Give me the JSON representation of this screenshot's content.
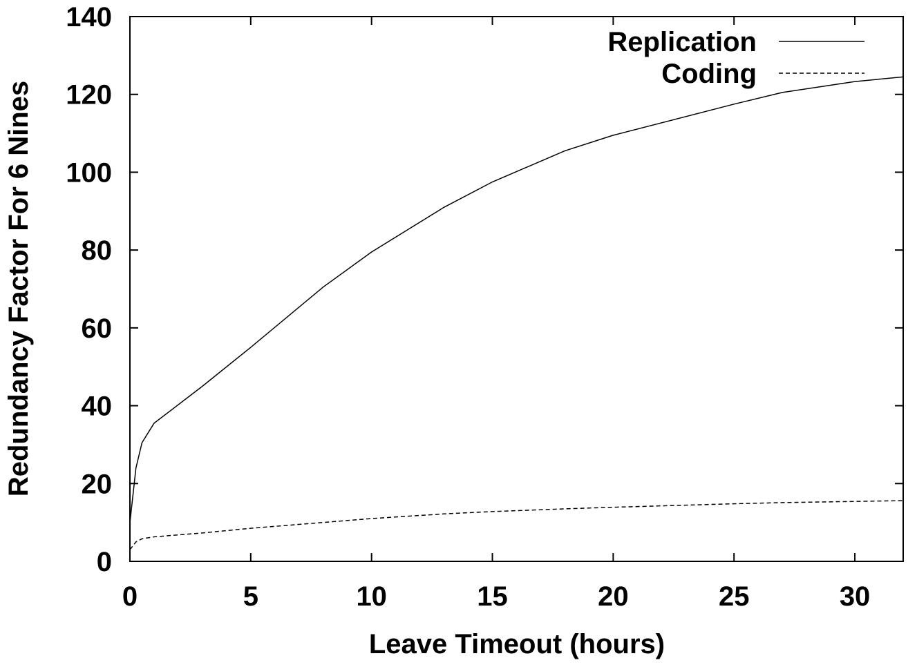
{
  "chart_data": {
    "type": "line",
    "xlabel": "Leave Timeout (hours)",
    "ylabel": "Redundancy Factor For 6 Nines",
    "x": [
      0,
      0.25,
      0.5,
      1,
      3,
      5,
      8,
      10,
      13,
      15,
      18,
      20,
      25,
      27,
      30,
      32
    ],
    "series": [
      {
        "name": "Replication",
        "color": "#000000",
        "dash": false,
        "values": [
          10,
          24,
          30.5,
          35.5,
          45,
          55,
          70.5,
          79.5,
          91,
          97.5,
          105.5,
          109.5,
          117.5,
          120.5,
          123.3,
          124.5
        ]
      },
      {
        "name": "Coding",
        "color": "#000000",
        "dash": true,
        "values": [
          3,
          5,
          5.8,
          6.3,
          7.3,
          8.5,
          10,
          11,
          12.2,
          12.8,
          13.5,
          13.9,
          14.8,
          15.1,
          15.4,
          15.6
        ]
      }
    ],
    "xlim": [
      0,
      32
    ],
    "xticks": [
      0,
      5,
      10,
      15,
      20,
      25,
      30
    ],
    "ylim": [
      0,
      140
    ],
    "yticks": [
      0,
      20,
      40,
      60,
      80,
      100,
      120,
      140
    ],
    "grid": false,
    "legend": "top-right"
  }
}
